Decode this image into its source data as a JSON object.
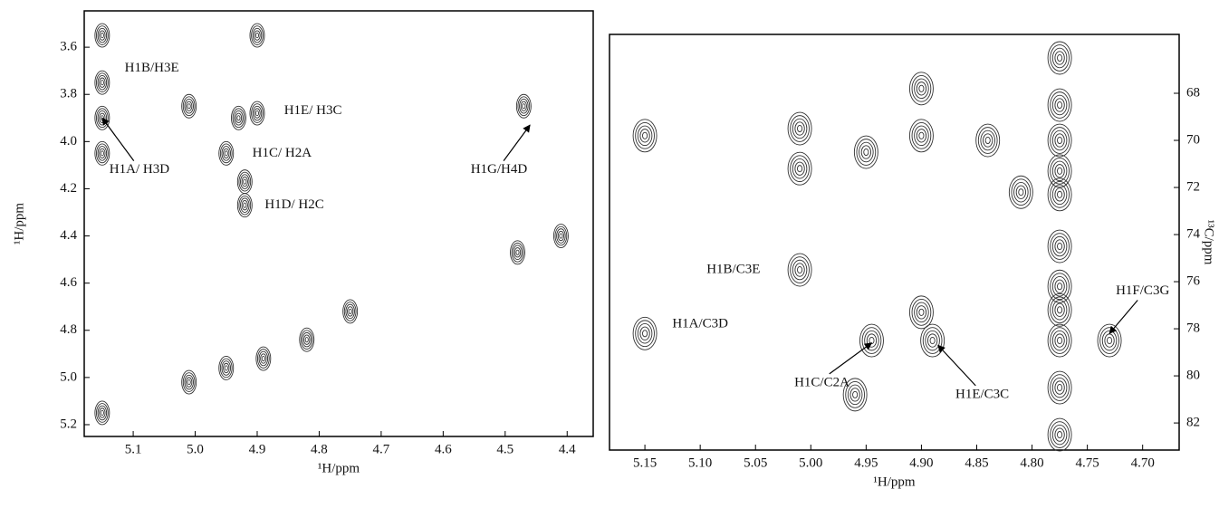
{
  "chart_data": [
    {
      "type": "contour",
      "color": "#333333",
      "xlabel": "¹H/ppm",
      "ylabel": "¹H/ppm",
      "xlim": [
        5.179,
        4.358
      ],
      "ylim": [
        3.446,
        5.25
      ],
      "xticks": [
        5.1,
        {
          "value": 5,
          "label": "5.0"
        },
        4.9,
        4.8,
        4.7,
        4.6,
        4.5,
        4.4
      ],
      "yticks": [
        3.6,
        3.8,
        {
          "value": 4,
          "label": "4.0"
        },
        4.2,
        4.4,
        4.6,
        4.8,
        {
          "value": 5,
          "label": "5.0"
        },
        5.2
      ],
      "x": [
        5.15,
        5.15,
        5.15,
        5.15,
        5.01,
        4.9,
        4.9,
        4.93,
        4.95,
        4.92,
        4.92,
        4.47,
        4.48,
        4.41,
        5.15,
        5.01,
        4.95,
        4.89,
        4.82,
        4.75
      ],
      "y": [
        3.55,
        3.75,
        3.9,
        4.05,
        3.85,
        3.55,
        3.88,
        3.9,
        4.05,
        4.17,
        4.27,
        3.85,
        4.47,
        4.4,
        5.15,
        5.02,
        4.96,
        4.92,
        4.84,
        4.72
      ],
      "annotations": [
        {
          "text": "H1B/H3E",
          "xy": [
            5.07,
            3.69
          ]
        },
        {
          "text": "H1E/ H3C",
          "xy": [
            4.81,
            3.87
          ]
        },
        {
          "text": "H1C/ H2A",
          "xy": [
            4.86,
            4.05
          ]
        },
        {
          "text": "H1D/ H2C",
          "xy": [
            4.84,
            4.27
          ]
        },
        {
          "text": "H1A/ H3D",
          "xy": [
            5.09,
            4.12
          ],
          "arrow": [
            5.15,
            3.9
          ]
        },
        {
          "text": "H1G/H4D",
          "xy": [
            4.51,
            4.12
          ],
          "arrow": [
            4.46,
            3.93
          ]
        }
      ]
    },
    {
      "type": "contour",
      "color": "#333333",
      "xlabel": "¹H/ppm",
      "ylabel": "¹³C/ppm",
      "xlim": [
        5.182,
        4.667
      ],
      "ylim": [
        65.5,
        83.15
      ],
      "xticks": [
        5.15,
        {
          "value": 5.1,
          "label": "5.10"
        },
        5.05,
        {
          "value": 5,
          "label": "5.00"
        },
        4.95,
        {
          "value": 4.9,
          "label": "4.90"
        },
        4.85,
        {
          "value": 4.8,
          "label": "4.80"
        },
        4.75,
        {
          "value": 4.7,
          "label": "4.70"
        }
      ],
      "yticks": [
        68,
        70,
        72,
        74,
        76,
        78,
        80,
        82
      ],
      "x": [
        5.15,
        5.01,
        5.01,
        4.95,
        4.9,
        4.84,
        4.9,
        5.01,
        5.15,
        4.945,
        4.96,
        4.9,
        4.89,
        4.73,
        4.775,
        4.775,
        4.775,
        4.775,
        4.775,
        4.775,
        4.775,
        4.775,
        4.775,
        4.775,
        4.775,
        4.81
      ],
      "y": [
        69.8,
        69.5,
        71.2,
        70.5,
        69.8,
        70,
        67.8,
        75.5,
        78.2,
        78.5,
        80.8,
        77.3,
        78.5,
        78.5,
        66.5,
        68.5,
        70,
        71.3,
        72.3,
        74.5,
        76.2,
        77.2,
        78.5,
        80.5,
        82.5,
        72.2
      ],
      "annotations": [
        {
          "text": "H1B/C3E",
          "xy": [
            5.07,
            75.5
          ]
        },
        {
          "text": "H1A/C3D",
          "xy": [
            5.1,
            77.8
          ]
        },
        {
          "text": "H1C/C2A",
          "xy": [
            4.99,
            80.3
          ],
          "arrow": [
            4.945,
            78.6
          ]
        },
        {
          "text": "H1E/C3C",
          "xy": [
            4.845,
            80.8
          ],
          "arrow": [
            4.885,
            78.7
          ]
        },
        {
          "text": "H1F/C3G",
          "xy": [
            4.7,
            76.4
          ],
          "arrow": [
            4.73,
            78.2
          ]
        }
      ]
    }
  ]
}
